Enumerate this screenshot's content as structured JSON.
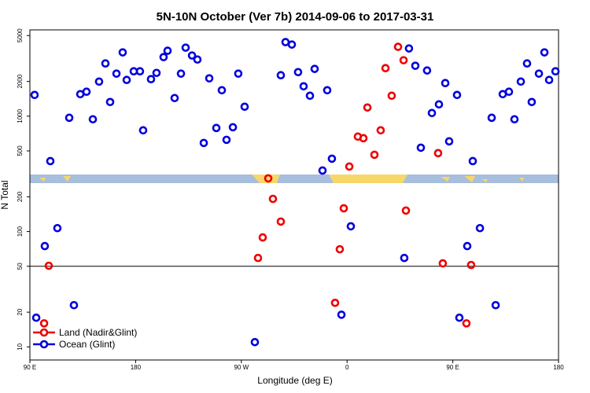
{
  "chart_data": {
    "type": "scatter",
    "title": "5N-10N October (Ver 7b)   2014-09-06 to 2017-03-31",
    "xlabel": "Longitude (deg E)",
    "ylabel": "N Total",
    "xlim": [
      90,
      540
    ],
    "ylim": [
      7.7,
      5600
    ],
    "log_y": true,
    "xticks": [
      {
        "value": 90,
        "label": "90 E"
      },
      {
        "value": 180,
        "label": "180"
      },
      {
        "value": 270,
        "label": "90 W"
      },
      {
        "value": 360,
        "label": "0"
      },
      {
        "value": 450,
        "label": "90 E"
      },
      {
        "value": 540,
        "label": "180"
      }
    ],
    "yticks": [
      10,
      20,
      50,
      100,
      200,
      500,
      1000,
      2000,
      5000
    ],
    "hline": 50,
    "legend": "bottom-left",
    "series": [
      {
        "name": "Land (Nadir&Glint)",
        "color": "#ee0000",
        "x": [
          106.1,
          102.1,
          284.2,
          288.2,
          292.9,
          296.9,
          303.6,
          349.8,
          353.8,
          357.2,
          361.9,
          369.2,
          373.9,
          377.3,
          383.3,
          388.6,
          392.7,
          398.0,
          403.4,
          408.1,
          410.1,
          437.5,
          441.5,
          461.6,
          465.6
        ],
        "values": [
          50.5,
          16,
          59,
          88.9,
          289,
          192,
          122,
          24.1,
          70.2,
          159,
          366,
          665,
          644,
          1189,
          463,
          754,
          2608,
          1504,
          3990,
          3055,
          152,
          478,
          53,
          16,
          51.3
        ]
      },
      {
        "name": "Ocean (Glint)",
        "color": "#0000dd",
        "x": [
          94.0,
          107.4,
          123.5,
          132.9,
          138.2,
          143.6,
          148.9,
          154.3,
          158.3,
          163.7,
          169.0,
          172.4,
          178.4,
          183.7,
          186.4,
          193.1,
          197.8,
          203.8,
          207.2,
          213.2,
          218.6,
          222.6,
          228.0,
          232.6,
          238.0,
          242.7,
          248.7,
          253.4,
          257.4,
          262.8,
          267.4,
          272.8,
          281.5,
          303.6,
          307.6,
          313.0,
          318.3,
          323.0,
          328.4,
          332.4,
          339.1,
          343.1,
          347.1,
          363.2,
          408.7,
          412.7,
          418.1,
          422.8,
          428.1,
          432.2,
          438.2,
          443.6,
          446.9,
          453.6,
          455.6,
          462.3,
          467.0,
          473.1,
          483.1,
          486.5,
          492.5,
          497.8,
          502.5,
          507.9,
          513.2,
          517.2,
          523.3,
          528.0,
          532.0,
          537.4,
          95.4,
          102.7,
          113.4,
          127.5,
          355.2
        ],
        "values": [
          1528,
          408,
          969,
          1552,
          1629,
          940,
          1995,
          2866,
          1327,
          2338,
          3573,
          2061,
          2449,
          2449,
          754,
          2094,
          2372,
          3251,
          3690,
          1436,
          2338,
          3926,
          3357,
          3097,
          586,
          2128,
          790,
          1679,
          624,
          802,
          2338,
          1208,
          11.0,
          2265,
          4385,
          4179,
          2410,
          1816,
          1504,
          2570,
          338,
          1679,
          428,
          111,
          59,
          3864,
          2735,
          533,
          2489,
          1065,
          1266,
          1936,
          605,
          1528,
          17.9,
          74.8,
          408,
          107,
          969,
          23.0,
          1552,
          1629,
          940,
          1995,
          2866,
          1327,
          2338,
          3573,
          2061,
          2449,
          17.9,
          74.8,
          107,
          23.0,
          19.0
        ]
      }
    ]
  }
}
